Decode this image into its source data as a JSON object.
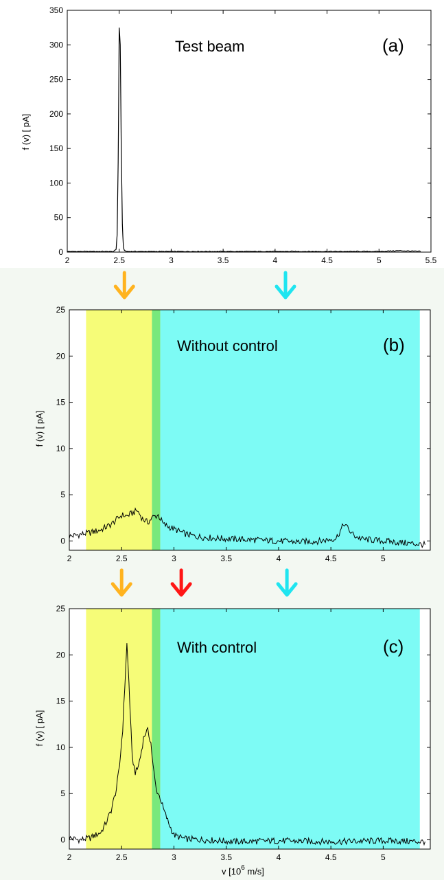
{
  "page": {
    "background": "#ffffff",
    "lower_background": "#f3f8f2"
  },
  "colors": {
    "yellow_band": "#f6fc78",
    "green_band": "#78e87c",
    "cyan_band": "#7dfbf5",
    "orange_arrow": "#ffb31f",
    "red_arrow": "#ff1616",
    "cyan_arrow": "#1fe5f0",
    "trace": "#000000"
  },
  "chart_data": [
    {
      "id": "a",
      "type": "line",
      "title": "Test beam",
      "tag": "(a)",
      "ylabel": "f (v)  [ pA]",
      "xlim": [
        2,
        5.5
      ],
      "ylim": [
        0,
        350
      ],
      "xticks": [
        "2",
        "2.5",
        "3",
        "3.5",
        "4",
        "4.5",
        "5",
        "5.5"
      ],
      "yticks": [
        "0",
        "50",
        "100",
        "150",
        "200",
        "250",
        "300",
        "350"
      ],
      "series": [
        {
          "x": [
            2.0,
            2.45,
            2.47,
            2.48,
            2.49,
            2.5,
            2.51,
            2.52,
            2.53,
            2.54,
            2.55,
            2.58,
            3.0,
            3.5,
            4.0,
            4.5,
            5.0,
            5.2,
            5.4
          ],
          "y": [
            1,
            1,
            4,
            25,
            130,
            325,
            300,
            150,
            40,
            8,
            2,
            1,
            1,
            1,
            1,
            1,
            1,
            2,
            1
          ]
        }
      ],
      "arrows": [
        {
          "color": "orange",
          "x": 2.55
        },
        {
          "color": "cyan",
          "x": 4.1
        }
      ]
    },
    {
      "id": "b",
      "type": "line",
      "title": "Without control",
      "tag": "(b)",
      "ylabel": "f (v)  [ pA]",
      "xlim": [
        2,
        5.45
      ],
      "ylim": [
        -1,
        25
      ],
      "xticks": [
        "2",
        "2.5",
        "3",
        "3.5",
        "4",
        "4.5",
        "5"
      ],
      "yticks": [
        "0",
        "5",
        "10",
        "15",
        "20",
        "25"
      ],
      "bands": [
        {
          "color": "yellow",
          "from": 2.16,
          "to": 2.79
        },
        {
          "color": "green",
          "from": 2.79,
          "to": 2.87
        },
        {
          "color": "cyan",
          "from": 2.87,
          "to": 5.35
        }
      ],
      "series": [
        {
          "x": [
            2.0,
            2.1,
            2.2,
            2.3,
            2.4,
            2.45,
            2.5,
            2.55,
            2.6,
            2.65,
            2.7,
            2.75,
            2.8,
            2.85,
            2.9,
            3.0,
            3.1,
            3.2,
            3.4,
            3.6,
            3.8,
            4.0,
            4.2,
            4.4,
            4.55,
            4.6,
            4.63,
            4.67,
            4.72,
            4.8,
            5.0,
            5.2,
            5.4
          ],
          "y": [
            0.5,
            0.7,
            0.9,
            1.2,
            1.8,
            2.3,
            2.8,
            2.7,
            3.0,
            3.3,
            2.4,
            2.0,
            2.6,
            2.8,
            1.8,
            1.3,
            0.8,
            0.5,
            0.3,
            0.2,
            0.1,
            0.0,
            -0.1,
            0.0,
            0.3,
            1.3,
            1.9,
            1.2,
            0.6,
            0.2,
            0.0,
            -0.2,
            -0.4
          ]
        }
      ],
      "arrows": [
        {
          "color": "orange",
          "x": 2.5
        },
        {
          "color": "red",
          "x": 3.07
        },
        {
          "color": "cyan",
          "x": 4.08
        }
      ]
    },
    {
      "id": "c",
      "type": "line",
      "title": "With control",
      "tag": "(c)",
      "ylabel": "f (v)  [ pA]",
      "xlabel": "v  [10",
      "xlabel_sup": "6",
      "xlabel_tail": " m/s]",
      "xlim": [
        2,
        5.45
      ],
      "ylim": [
        -1,
        25
      ],
      "xticks": [
        "2",
        "2.5",
        "3",
        "3.5",
        "4",
        "4.5",
        "5"
      ],
      "yticks": [
        "0",
        "5",
        "10",
        "15",
        "20",
        "25"
      ],
      "bands": [
        {
          "color": "yellow",
          "from": 2.16,
          "to": 2.79
        },
        {
          "color": "green",
          "from": 2.79,
          "to": 2.87
        },
        {
          "color": "cyan",
          "from": 2.87,
          "to": 5.35
        }
      ],
      "series": [
        {
          "x": [
            2.0,
            2.1,
            2.2,
            2.3,
            2.35,
            2.4,
            2.45,
            2.48,
            2.51,
            2.53,
            2.55,
            2.57,
            2.6,
            2.63,
            2.65,
            2.68,
            2.71,
            2.73,
            2.75,
            2.78,
            2.8,
            2.83,
            2.87,
            2.9,
            2.95,
            3.0,
            3.1,
            3.3,
            3.6,
            4.0,
            4.5,
            5.0,
            5.4
          ],
          "y": [
            0.2,
            0.0,
            0.2,
            0.8,
            1.8,
            3.2,
            5.5,
            8.0,
            12.0,
            16.5,
            21.2,
            17.0,
            9.0,
            7.3,
            7.6,
            9.0,
            11.0,
            11.6,
            11.8,
            10.5,
            8.0,
            5.5,
            4.5,
            3.3,
            1.8,
            0.5,
            0.1,
            0.0,
            -0.2,
            -0.1,
            -0.2,
            -0.1,
            -0.2
          ]
        }
      ],
      "arrows": [
        {
          "color": "orange",
          "x": 2.53
        }
      ]
    }
  ]
}
